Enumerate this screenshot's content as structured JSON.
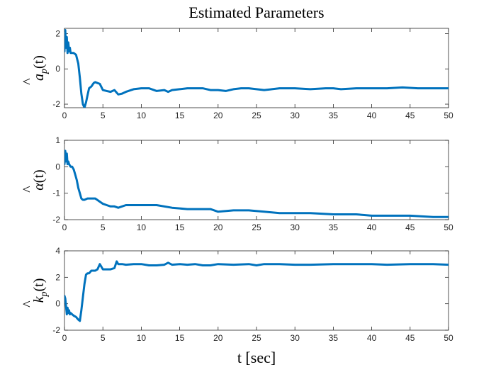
{
  "chart_data": {
    "type": "line",
    "title": "Estimated Parameters",
    "xlabel": "t [sec]",
    "line_color": "#0072BD",
    "grid": false,
    "panels": [
      {
        "ylabel": "â_p(t)",
        "ylabel_base": "a",
        "ylabel_hat": "^",
        "ylabel_sub": "p",
        "ylabel_arg": "(t)",
        "xlim": [
          0,
          50
        ],
        "ylim": [
          -2.2,
          2.3
        ],
        "xticks": [
          0,
          5,
          10,
          15,
          20,
          25,
          30,
          35,
          40,
          45,
          50
        ],
        "yticks": [
          -2,
          0,
          2
        ],
        "series": [
          {
            "x": [
              0,
              0.1,
              0.2,
              0.3,
              0.4,
              0.5,
              0.6,
              0.7,
              0.8,
              1.0,
              1.2,
              1.5,
              1.8,
              2.0,
              2.2,
              2.4,
              2.6,
              2.8,
              3.0,
              3.2,
              3.5,
              3.8,
              4.0,
              4.3,
              4.6,
              5.0,
              5.5,
              6.0,
              6.5,
              7.0,
              7.5,
              8.0,
              9.0,
              10.0,
              11.0,
              12.0,
              13.0,
              13.5,
              14.0,
              15.0,
              16.0,
              17.0,
              18.0,
              19.0,
              20.0,
              21.0,
              22.0,
              23.0,
              24.0,
              25.0,
              26.0,
              27.0,
              28.0,
              29.0,
              30.0,
              32.0,
              34.0,
              35.0,
              36.0,
              38.0,
              40.0,
              42.0,
              44.0,
              46.0,
              48.0,
              50.0
            ],
            "y": [
              1.0,
              2.2,
              1.2,
              1.8,
              0.9,
              1.5,
              1.0,
              1.2,
              0.9,
              0.9,
              0.9,
              0.8,
              0.3,
              -0.5,
              -1.4,
              -2.0,
              -2.2,
              -1.9,
              -1.5,
              -1.1,
              -1.0,
              -0.8,
              -0.75,
              -0.8,
              -0.85,
              -1.2,
              -1.25,
              -1.3,
              -1.2,
              -1.45,
              -1.4,
              -1.3,
              -1.15,
              -1.1,
              -1.1,
              -1.25,
              -1.2,
              -1.3,
              -1.2,
              -1.15,
              -1.1,
              -1.1,
              -1.1,
              -1.2,
              -1.2,
              -1.25,
              -1.15,
              -1.1,
              -1.1,
              -1.15,
              -1.2,
              -1.15,
              -1.1,
              -1.1,
              -1.1,
              -1.15,
              -1.1,
              -1.1,
              -1.15,
              -1.1,
              -1.1,
              -1.1,
              -1.05,
              -1.1,
              -1.1,
              -1.1
            ]
          }
        ]
      },
      {
        "ylabel": "α̂(t)",
        "ylabel_base": "α",
        "ylabel_hat": "^",
        "ylabel_sub": "",
        "ylabel_arg": "(t)",
        "xlim": [
          0,
          50
        ],
        "ylim": [
          -2,
          1
        ],
        "xticks": [
          0,
          5,
          10,
          15,
          20,
          25,
          30,
          35,
          40,
          45,
          50
        ],
        "yticks": [
          -2,
          -1,
          0,
          1
        ],
        "series": [
          {
            "x": [
              0,
              0.1,
              0.2,
              0.3,
              0.4,
              0.5,
              0.6,
              0.8,
              1.0,
              1.2,
              1.4,
              1.6,
              1.8,
              2.0,
              2.2,
              2.4,
              2.6,
              3.0,
              3.5,
              4.0,
              4.5,
              5.0,
              5.5,
              6.0,
              6.5,
              7.0,
              7.5,
              8.0,
              9.0,
              10.0,
              12.0,
              14.0,
              16.0,
              18.0,
              19.0,
              20.0,
              22.0,
              24.0,
              26.0,
              28.0,
              30.0,
              32.0,
              35.0,
              38.0,
              40.0,
              42.0,
              45.0,
              48.0,
              50.0
            ],
            "y": [
              0.1,
              0.6,
              0.2,
              0.5,
              0.1,
              0.2,
              0.1,
              0.0,
              0.0,
              -0.1,
              -0.3,
              -0.5,
              -0.8,
              -1.0,
              -1.2,
              -1.25,
              -1.25,
              -1.2,
              -1.2,
              -1.2,
              -1.3,
              -1.4,
              -1.45,
              -1.5,
              -1.5,
              -1.55,
              -1.5,
              -1.45,
              -1.45,
              -1.45,
              -1.45,
              -1.55,
              -1.6,
              -1.6,
              -1.6,
              -1.7,
              -1.65,
              -1.65,
              -1.7,
              -1.75,
              -1.75,
              -1.75,
              -1.8,
              -1.8,
              -1.85,
              -1.85,
              -1.85,
              -1.9,
              -1.9
            ]
          }
        ]
      },
      {
        "ylabel": "k̂_p(t)",
        "ylabel_base": "k",
        "ylabel_hat": "^",
        "ylabel_sub": "p",
        "ylabel_arg": "(t)",
        "xlim": [
          0,
          50
        ],
        "ylim": [
          -2,
          4
        ],
        "xticks": [
          0,
          5,
          10,
          15,
          20,
          25,
          30,
          35,
          40,
          45,
          50
        ],
        "yticks": [
          -2,
          0,
          2,
          4
        ],
        "series": [
          {
            "x": [
              0,
              0.1,
              0.2,
              0.3,
              0.4,
              0.5,
              0.6,
              0.7,
              0.8,
              1.0,
              1.2,
              1.5,
              1.8,
              2.0,
              2.2,
              2.4,
              2.6,
              2.8,
              3.0,
              3.2,
              3.5,
              4.0,
              4.3,
              4.6,
              5.0,
              5.5,
              6.0,
              6.5,
              6.8,
              7.0,
              7.5,
              8.0,
              9.0,
              10.0,
              11.0,
              12.0,
              13.0,
              13.5,
              14.0,
              15.0,
              16.0,
              17.0,
              18.0,
              19.0,
              20.0,
              22.0,
              24.0,
              25.0,
              26.0,
              28.0,
              30.0,
              32.0,
              35.0,
              38.0,
              40.0,
              42.0,
              45.0,
              48.0,
              50.0
            ],
            "y": [
              0.6,
              0.4,
              -0.2,
              -0.8,
              -0.3,
              -0.7,
              -0.5,
              -0.8,
              -0.7,
              -0.8,
              -0.9,
              -1.0,
              -1.2,
              -1.3,
              -0.5,
              0.5,
              1.5,
              2.2,
              2.3,
              2.3,
              2.5,
              2.5,
              2.6,
              3.0,
              2.6,
              2.6,
              2.6,
              2.7,
              3.2,
              3.0,
              3.0,
              2.95,
              3.0,
              3.0,
              2.9,
              2.9,
              2.95,
              3.1,
              2.95,
              3.0,
              2.95,
              3.0,
              2.9,
              2.9,
              3.0,
              2.95,
              3.0,
              2.9,
              3.0,
              3.0,
              2.95,
              2.95,
              3.0,
              3.0,
              3.0,
              2.95,
              3.0,
              3.0,
              2.95
            ]
          }
        ]
      }
    ]
  }
}
